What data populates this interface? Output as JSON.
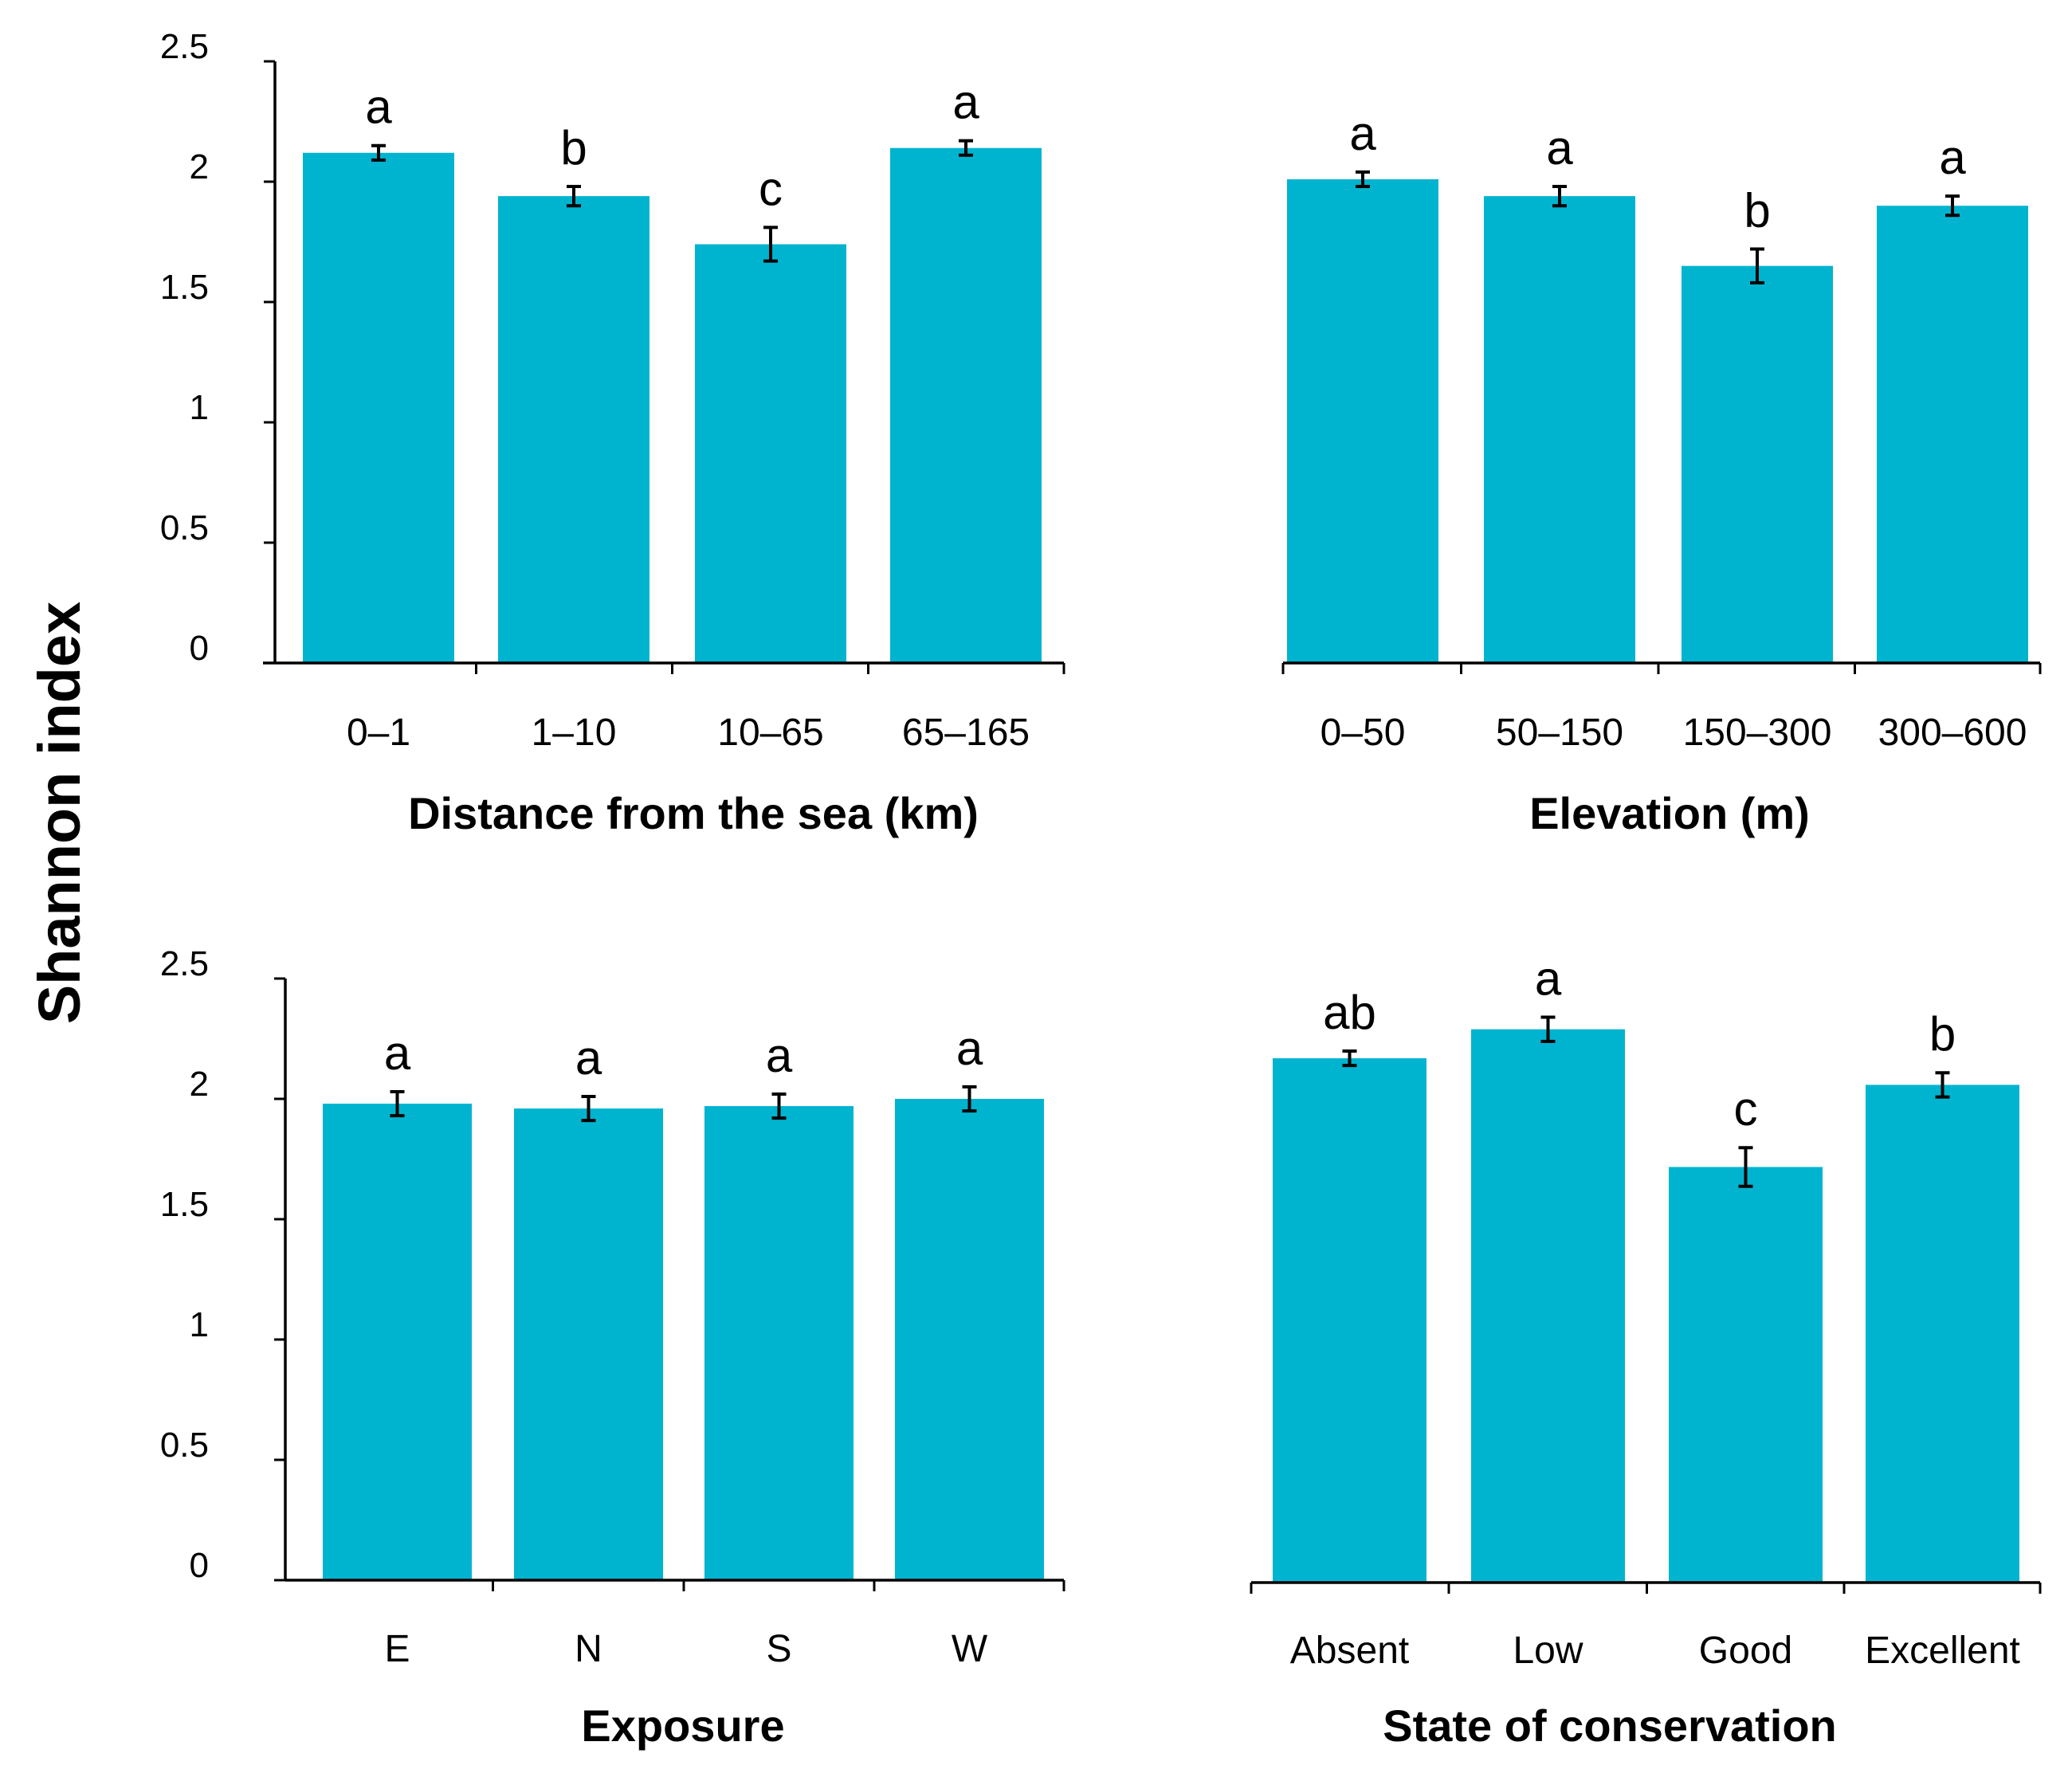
{
  "figure": {
    "shared_ylabel": "Shannon index",
    "bar_color": "#00B4CF",
    "axis_color": "#000000"
  },
  "chart_data": [
    {
      "type": "bar",
      "xlabel": "Distance from the sea (km)",
      "ylabel": "Shannon index",
      "categories": [
        "0–1",
        "1–10",
        "10–65",
        "65–165"
      ],
      "values": [
        2.12,
        1.94,
        1.74,
        2.14
      ],
      "errors": [
        0.03,
        0.04,
        0.07,
        0.03
      ],
      "letters": [
        "a",
        "b",
        "c",
        "a"
      ],
      "ylim": [
        0,
        2.5
      ],
      "yticks": [
        "0",
        "0.5",
        "1",
        "1.5",
        "2",
        "2.5"
      ],
      "show_yticks": true
    },
    {
      "type": "bar",
      "xlabel": "Elevation (m)",
      "ylabel": "Shannon index",
      "categories": [
        "0–50",
        "50–150",
        "150–300",
        "300–600"
      ],
      "values": [
        2.01,
        1.94,
        1.65,
        1.9
      ],
      "errors": [
        0.03,
        0.04,
        0.07,
        0.04
      ],
      "letters": [
        "a",
        "a",
        "b",
        "a"
      ],
      "ylim": [
        0,
        2.5
      ],
      "yticks": [],
      "show_yticks": false
    },
    {
      "type": "bar",
      "xlabel": "Exposure",
      "ylabel": "Shannon index",
      "categories": [
        "E",
        "N",
        "S",
        "W"
      ],
      "values": [
        1.98,
        1.96,
        1.97,
        2.0
      ],
      "errors": [
        0.05,
        0.05,
        0.05,
        0.05
      ],
      "letters": [
        "a",
        "a",
        "a",
        "a"
      ],
      "ylim": [
        0,
        2.5
      ],
      "yticks": [
        "0",
        "0.5",
        "1",
        "1.5",
        "2",
        "2.5"
      ],
      "show_yticks": true
    },
    {
      "type": "bar",
      "xlabel": "State of conservation",
      "ylabel": "Shannon index",
      "categories": [
        "Absent",
        "Low",
        "Good",
        "Excellent"
      ],
      "values": [
        2.17,
        2.29,
        1.72,
        2.06
      ],
      "errors": [
        0.03,
        0.05,
        0.08,
        0.05
      ],
      "letters": [
        "ab",
        "a",
        "c",
        "b"
      ],
      "ylim": [
        0,
        2.5
      ],
      "yticks": [],
      "show_yticks": false
    }
  ]
}
